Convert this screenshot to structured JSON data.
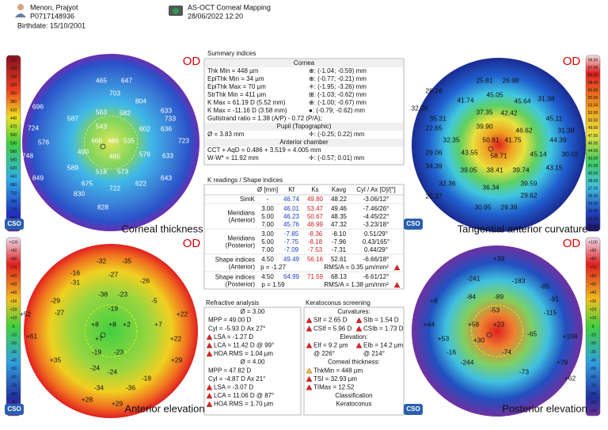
{
  "header": {
    "patient_name": "Menon, Prajyot",
    "patient_id": "P0717148936",
    "birthdate": "Birthdate: 15/10/2001",
    "exam_type": "AS-OCT Corneal Mapping",
    "exam_date": "28/06/2022 12:20"
  },
  "logo": "CSO",
  "maps": [
    {
      "eye": "OD",
      "title": "Corneal thickness",
      "scale": [
        "230",
        "260",
        "290",
        "320",
        "350",
        "380",
        "410",
        "440",
        "470",
        "500",
        "530",
        "560",
        "590",
        "620",
        "650",
        "680",
        "710",
        "740",
        "770",
        "800",
        "830"
      ],
      "labels": [
        "465",
        "647",
        "703",
        "804",
        "696",
        "633",
        "587",
        "563",
        "582",
        "733",
        "543",
        "724",
        "602",
        "636",
        "466",
        "486",
        "535",
        "723",
        "576",
        "490",
        "485",
        "576",
        "633",
        "748",
        "589",
        "518",
        "573",
        "622",
        "643",
        "849",
        "675",
        "722",
        "830",
        "828"
      ]
    },
    {
      "eye": "OD",
      "title": "Tangential anterior curvature",
      "scale": [
        "99.50",
        "67.00",
        "60.50",
        "58.00",
        "56.50",
        "55.00",
        "53.50",
        "52.00",
        "50.50",
        "49.00",
        "47.50",
        "46.00",
        "44.50",
        "43.00",
        "41.50",
        "40.00",
        "38.50",
        "37.00",
        "35.50",
        "34.00",
        "30.00",
        "24.00",
        "16.00"
      ],
      "labels": [
        "25.81",
        "26.98",
        "28.16",
        "45.05",
        "31.38",
        "41.74",
        "45.64",
        "32.28",
        "35.31",
        "37.35",
        "42.42",
        "45.11",
        "22.65",
        "39.90",
        "46.62",
        "31.38",
        "32.35",
        "50.81",
        "41.75",
        "44.39",
        "29.06",
        "43.55",
        "58.71",
        "45.14",
        "30.02",
        "34.39",
        "39.05",
        "38.41",
        "39.74",
        "43.15",
        "32.36",
        "36.34",
        "39.59",
        "25.37",
        "29.62",
        "30.95",
        "29.39"
      ]
    },
    {
      "eye": "OD",
      "title": "Anterior elevation",
      "scale": [
        "+100",
        "+90",
        "+80",
        "+70",
        "+60",
        "+50",
        "+40",
        "+30",
        "+20",
        "+10",
        "0",
        "-10",
        "-20",
        "-30",
        "-40",
        "-50",
        "-60",
        "-70",
        "-80",
        "-90",
        "-100"
      ],
      "labels": [
        "-32",
        "-35",
        "-16",
        "-27",
        "-31",
        "-26",
        "-29",
        "-38",
        "-23",
        "-5",
        "+52",
        "-27",
        "-19",
        "+22",
        "+8",
        "+8",
        "+2",
        "+7",
        "+61",
        "+7",
        "+22",
        "+35",
        "-19",
        "-23",
        "+29",
        "-24",
        "-24",
        "-18",
        "-34",
        "-36",
        "+28",
        "+29"
      ]
    },
    {
      "eye": "OD",
      "title": "Posterior elevation",
      "scale": [
        "+100",
        "+90",
        "+80",
        "+70",
        "+60",
        "+50",
        "+40",
        "+30",
        "+20",
        "+10",
        "0",
        "-10",
        "-20",
        "-30",
        "-40",
        "-50",
        "-60",
        "-70",
        "-80",
        "-90",
        "-100"
      ],
      "labels": [
        "+39",
        "-241",
        "-183",
        "-85",
        "+8",
        "-84",
        "-89",
        "-91",
        "-53",
        "-115",
        "+44",
        "+58",
        "+23",
        "-65",
        "+53",
        "+30",
        "+108",
        "-16",
        "-74",
        "+79",
        "-244",
        "-73",
        "+62"
      ]
    }
  ],
  "summary": {
    "title": "Summary indices",
    "rows": [
      {
        "header": "Cornea"
      },
      {
        "left": "Thk Min = 448 µm",
        "right": "⊕: (-1.04; -0.59) mm"
      },
      {
        "left": "EpiThk Min = 34 µm",
        "right": "⊕: (-0.77; -0.21) mm"
      },
      {
        "left": "EpiThk Max = 70 µm",
        "right": "✳: (-1.95; -3.26) mm"
      },
      {
        "left": "StrThk Min = 411 µm",
        "right": "⊞: (-1.03; -0.62) mm"
      },
      {
        "left": "K Max = 61.19 D (5.52 mm)",
        "right": "⊕: (-1.00; -0.67) mm"
      },
      {
        "left": "K Max = -11.16 D (3.58 mm)",
        "right": "●: (-0.79; -0.62) mm"
      },
      {
        "left": "Gullstrand ratio = 1.38 (A/P) - 0.72 (P/A);"
      },
      {
        "header": "Pupil (Topographic)"
      },
      {
        "left": "Ø = 3.83 mm",
        "right": "✛: (-0.25; 0.22) mm"
      },
      {
        "header": "Anterior chamber"
      },
      {
        "left": "CCT + AqD = 0.486 + 3.519 = 4.005 mm"
      },
      {
        "left": "W-W* = 11.92 mm",
        "right": "✛: (-0.57; 0.01) mm"
      }
    ]
  },
  "k_readings": {
    "title": "K readings / Shape indices",
    "columns": [
      "Ø [mm]",
      "Kf",
      "Ks",
      "Kavg",
      "Cyl / Ax [D]/[°]"
    ],
    "groups": [
      {
        "label": [
          "SimK"
        ],
        "rows": [
          [
            "-",
            "46.74",
            "49.80",
            "48.22",
            "-3.06/12°"
          ]
        ]
      },
      {
        "label": [
          "Meridians",
          "(Anterior)"
        ],
        "rows": [
          [
            "3.00",
            "46.01",
            "53.47",
            "49.46",
            "-7.46/26°"
          ],
          [
            "5.00",
            "46.23",
            "50.67",
            "48.35",
            "-4.45/22°"
          ],
          [
            "7.00",
            "45.76",
            "48.99",
            "47.32",
            "-3.23/18°"
          ]
        ]
      },
      {
        "label": [
          "Meridians",
          "(Posterior)"
        ],
        "rows": [
          [
            "3.00",
            "-7.85",
            "-8.36",
            "-8.10",
            "0.51/29°"
          ],
          [
            "5.00",
            "-7.75",
            "-8.18",
            "-7.96",
            "0.43/165°"
          ],
          [
            "7.00",
            "-7.09",
            "-7.53",
            "-7.31",
            "0.44/29°"
          ]
        ]
      },
      {
        "label": [
          "Shape indices",
          "(Anterior)"
        ],
        "rows": [
          [
            "4.50",
            "49.49",
            "56.16",
            "52.61",
            "-6.66/18°"
          ]
        ],
        "extra": [
          "p = -1.27",
          "RMS/A = 0.35 µm/mm²"
        ]
      },
      {
        "label": [
          "Shape indices",
          "(Posterior)"
        ],
        "rows": [
          [
            "4.50",
            "64.99",
            "71.59",
            "68.13",
            "-6.61/12°"
          ]
        ],
        "extra": [
          "p = 1.59",
          "RMS/A = 1.38 µm/mm²"
        ]
      }
    ]
  },
  "refractive": {
    "title": "Refractive analysis",
    "rows": [
      [
        "Ø = 3.00"
      ],
      [
        {
          "text": "MPP = 49.00 D"
        }
      ],
      [
        {
          "text": "Cyl = -5.93 D Ax 27°"
        }
      ],
      [
        {
          "text": "LSA = -1.27 D",
          "flag": "red"
        }
      ],
      [
        {
          "text": "LCA = 11.42 D @ 99°",
          "flag": "red"
        }
      ],
      [
        {
          "text": "HOA RMS = 1.04 µm",
          "flag": "red"
        }
      ],
      [
        "Ø = 4.00"
      ],
      [
        {
          "text": "MPP = 47.82 D"
        }
      ],
      [
        {
          "text": "Cyl = -4.87 D Ax 21°"
        }
      ],
      [
        {
          "text": "LSA = -3.07 D",
          "flag": "red"
        }
      ],
      [
        {
          "text": "LCA = 11.06 D @ 87°",
          "flag": "red"
        }
      ],
      [
        {
          "text": "HOA RMS = 1.70 µm",
          "flag": "red"
        }
      ]
    ]
  },
  "keratoconus": {
    "title": "Keratoconus screening",
    "rows": [
      [
        "Curvatures:"
      ],
      [
        {
          "text": "SIf = 2.65 D",
          "flag": "red"
        },
        {
          "text": "SIb = 1.54 D",
          "flag": "red"
        }
      ],
      [
        {
          "text": "CSIf = 5.96 D",
          "flag": "red"
        },
        {
          "text": "CSIb = 1.73 D",
          "flag": "red"
        }
      ],
      [
        "Elevation:"
      ],
      [
        {
          "text": "EIf = 9.2 µm",
          "flag": "red"
        },
        {
          "text": "EIb = 14.2 µm",
          "flag": "red"
        }
      ],
      [
        {
          "text": "@ 226°"
        },
        {
          "text": "@ 214°"
        }
      ],
      [
        "Corneal thickness:"
      ],
      [
        {
          "text": "ThkMin = 448 µm",
          "flag": "yellow"
        }
      ],
      [
        {
          "text": "TSI = 32.93 µm",
          "flag": "red"
        }
      ],
      [
        {
          "text": "TIMax = 12.52",
          "flag": "red"
        }
      ],
      [
        "Classification"
      ],
      [
        "Keratoconus"
      ]
    ]
  }
}
